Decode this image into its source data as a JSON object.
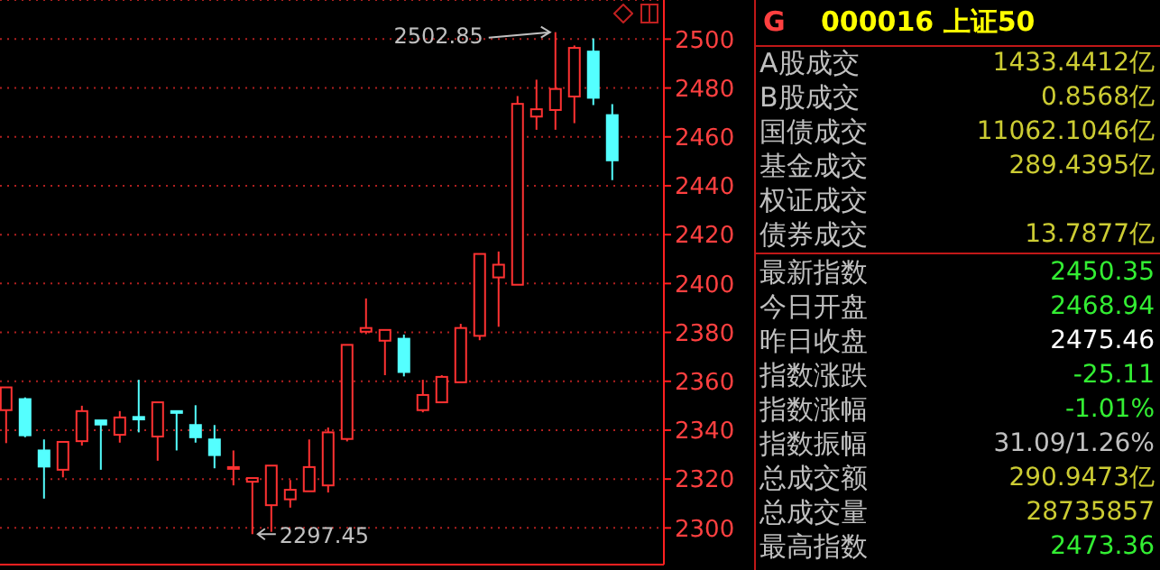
{
  "chart_data": [
    {
      "type": "candlestick",
      "categories": [
        null,
        null,
        null,
        null,
        null,
        null,
        null,
        null,
        null,
        null,
        null,
        null,
        null,
        null,
        null,
        null,
        null,
        null,
        null,
        null,
        null,
        null,
        null,
        null,
        null,
        null,
        null,
        null,
        null,
        null,
        null,
        null,
        null
      ],
      "ohlc": [
        [
          2348.2,
          2357.5,
          2334.7,
          2357.5
        ],
        [
          2352.7,
          2353.4,
          2337.1,
          2337.9
        ],
        [
          2331.7,
          2336.2,
          2312.0,
          2325.1
        ],
        [
          2323.8,
          2335.5,
          2320.7,
          2335.2
        ],
        [
          2335.5,
          2350.0,
          2333.7,
          2347.8
        ],
        [
          2344.0,
          2344.0,
          2323.8,
          2342.3
        ],
        [
          2338.1,
          2347.8,
          2334.9,
          2345.2
        ],
        [
          2345.4,
          2360.6,
          2339.1,
          2344.4
        ],
        [
          2337.4,
          2351.4,
          2327.5,
          2351.4
        ],
        [
          2347.8,
          2347.8,
          2331.7,
          2347.3
        ],
        [
          2342.1,
          2350.2,
          2334.9,
          2337.1
        ],
        [
          2336.2,
          2342.1,
          2324.4,
          2329.8
        ],
        [
          2324.4,
          2331.7,
          2317.4,
          2324.9
        ],
        [
          2318.9,
          2320.4,
          2297.45,
          2320.4
        ],
        [
          2309.3,
          2325.5,
          2298.4,
          2325.5
        ],
        [
          2311.7,
          2319.6,
          2308.3,
          2315.6
        ],
        [
          2315.0,
          2336.2,
          2315.0,
          2324.9
        ],
        [
          2317.4,
          2341.1,
          2314.5,
          2339.1
        ],
        [
          2336.4,
          2374.9,
          2335.4,
          2374.9
        ],
        [
          2380.3,
          2393.9,
          2379.3,
          2381.8
        ],
        [
          2376.6,
          2381.0,
          2362.5,
          2381.0
        ],
        [
          2377.4,
          2379.1,
          2362.0,
          2363.8
        ],
        [
          2348.2,
          2360.6,
          2347.3,
          2354.4
        ],
        [
          2351.4,
          2362.5,
          2351.4,
          2361.8
        ],
        [
          2359.6,
          2383.5,
          2359.6,
          2381.8
        ],
        [
          2378.6,
          2412.1,
          2376.8,
          2412.1
        ],
        [
          2402.5,
          2413.1,
          2382.3,
          2407.7
        ],
        [
          2399.5,
          2476.7,
          2399.5,
          2473.5
        ],
        [
          2468.3,
          2483.4,
          2462.9,
          2471.3
        ],
        [
          2471.0,
          2502.85,
          2462.9,
          2479.6
        ],
        [
          2476.5,
          2497.4,
          2465.6,
          2496.4
        ],
        [
          2494.9,
          2500.3,
          2473.0,
          2476.0
        ],
        [
          2468.9,
          2473.4,
          2442.3,
          2450.4
        ]
      ],
      "colors": [
        "#ff3232",
        "#54ffff",
        "#54ffff",
        "#ff3232",
        "#ff3232",
        "#54ffff",
        "#ff3232",
        "#54ffff",
        "#ff3232",
        "#54ffff",
        "#54ffff",
        "#54ffff",
        "#ff3232",
        "#ff3232",
        "#ff3232",
        "#ff3232",
        "#ff3232",
        "#ff3232",
        "#ff3232",
        "#ff3232",
        "#ff3232",
        "#54ffff",
        "#ff3232",
        "#ff3232",
        "#ff3232",
        "#ff3232",
        "#ff3232",
        "#ff3232",
        "#ff3232",
        "#ff3232",
        "#ff3232",
        "#54ffff",
        "#54ffff"
      ],
      "ylim": [
        2285,
        2516
      ],
      "yticks": [
        2300,
        2320,
        2340,
        2360,
        2380,
        2400,
        2420,
        2440,
        2460,
        2480,
        2500
      ],
      "grid": "y",
      "tick_labels": "y",
      "annotations": [
        "2502.85",
        "2297.45"
      ]
    },
    {
      "type": "other",
      "title": "000016 上证50",
      "annotations": [
        "G"
      ],
      "categories": [
        "A股成交",
        "B股成交",
        "国债成交",
        "基金成交",
        "权证成交",
        "债券成交",
        "最新指数",
        "今日开盘",
        "昨日收盘",
        "指数涨跌",
        "指数涨幅",
        "指数振幅",
        "总成交额",
        "总成交量",
        "最高指数"
      ],
      "value_labels": [
        "1433.4412亿",
        "0.8568亿",
        "11062.1046亿",
        "289.4395亿",
        null,
        "13.7877亿",
        "2450.35",
        "2468.94",
        "2475.46",
        "-25.11",
        "-1.01%",
        "31.09/1.26%",
        "290.9473亿",
        "28735857",
        "2473.36"
      ],
      "colors": [
        "#cccc33",
        "#cccc33",
        "#cccc33",
        "#cccc33",
        null,
        "#cccc33",
        "#33ee33",
        "#33ee33",
        "#ffffff",
        "#33ee33",
        "#33ee33",
        "#c0c0c0",
        "#cccc33",
        "#cccc33",
        "#33ee33"
      ]
    }
  ]
}
